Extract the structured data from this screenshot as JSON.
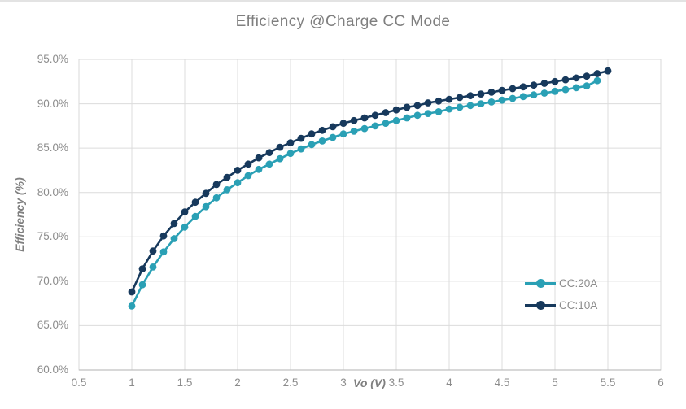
{
  "chart_data": {
    "type": "line",
    "title": "Efficiency @Charge CC Mode",
    "xlabel": "Vo (V)",
    "ylabel": "Efficiency (%)",
    "xlim": [
      0.5,
      6
    ],
    "ylim": [
      60,
      95
    ],
    "grid": true,
    "legend_position": "inside-right",
    "xticks": [
      0.5,
      1,
      1.5,
      2,
      2.5,
      3,
      3.5,
      4,
      4.5,
      5,
      5.5,
      6
    ],
    "xtick_labels": [
      "0.5",
      "1",
      "1.5",
      "2",
      "2.5",
      "3",
      "3.5",
      "4",
      "4.5",
      "5",
      "5.5",
      "6"
    ],
    "yticks": [
      60,
      65,
      70,
      75,
      80,
      85,
      90,
      95
    ],
    "ytick_labels": [
      "60.0%",
      "65.0%",
      "70.0%",
      "75.0%",
      "80.0%",
      "85.0%",
      "90.0%",
      "95.0%"
    ],
    "series": [
      {
        "name": "CC:20A",
        "color": "#2aa0b5",
        "x": [
          1.0,
          1.1,
          1.2,
          1.3,
          1.4,
          1.5,
          1.6,
          1.7,
          1.8,
          1.9,
          2.0,
          2.1,
          2.2,
          2.3,
          2.4,
          2.5,
          2.6,
          2.7,
          2.8,
          2.9,
          3.0,
          3.1,
          3.2,
          3.3,
          3.4,
          3.5,
          3.6,
          3.7,
          3.8,
          3.9,
          4.0,
          4.1,
          4.2,
          4.3,
          4.4,
          4.5,
          4.6,
          4.7,
          4.8,
          4.9,
          5.0,
          5.1,
          5.2,
          5.3,
          5.4
        ],
        "y": [
          67.2,
          69.6,
          71.6,
          73.3,
          74.8,
          76.1,
          77.3,
          78.4,
          79.4,
          80.3,
          81.1,
          81.9,
          82.6,
          83.2,
          83.8,
          84.4,
          84.9,
          85.4,
          85.8,
          86.2,
          86.6,
          86.9,
          87.2,
          87.5,
          87.8,
          88.1,
          88.4,
          88.7,
          88.9,
          89.1,
          89.4,
          89.6,
          89.8,
          90.0,
          90.2,
          90.4,
          90.6,
          90.8,
          91.0,
          91.2,
          91.4,
          91.6,
          91.8,
          92.0,
          92.6
        ]
      },
      {
        "name": "CC:10A",
        "color": "#17395c",
        "x": [
          1.0,
          1.1,
          1.2,
          1.3,
          1.4,
          1.5,
          1.6,
          1.7,
          1.8,
          1.9,
          2.0,
          2.1,
          2.2,
          2.3,
          2.4,
          2.5,
          2.6,
          2.7,
          2.8,
          2.9,
          3.0,
          3.1,
          3.2,
          3.3,
          3.4,
          3.5,
          3.6,
          3.7,
          3.8,
          3.9,
          4.0,
          4.1,
          4.2,
          4.3,
          4.4,
          4.5,
          4.6,
          4.7,
          4.8,
          4.9,
          5.0,
          5.1,
          5.2,
          5.3,
          5.4,
          5.5
        ],
        "y": [
          68.8,
          71.4,
          73.4,
          75.1,
          76.5,
          77.8,
          78.9,
          79.9,
          80.9,
          81.7,
          82.5,
          83.2,
          83.9,
          84.5,
          85.1,
          85.6,
          86.1,
          86.6,
          87.0,
          87.4,
          87.8,
          88.1,
          88.4,
          88.7,
          89.0,
          89.3,
          89.6,
          89.8,
          90.1,
          90.3,
          90.5,
          90.7,
          90.9,
          91.1,
          91.3,
          91.5,
          91.7,
          91.9,
          92.1,
          92.3,
          92.5,
          92.7,
          92.9,
          93.1,
          93.4,
          93.7
        ]
      }
    ],
    "colors": {
      "gridline": "#dcdcdc",
      "plot_border": "#d9d9d9",
      "axis_line": "#c0c0c0",
      "tick_text": "#8c8c8c",
      "title_text": "#7f7f7f"
    }
  }
}
